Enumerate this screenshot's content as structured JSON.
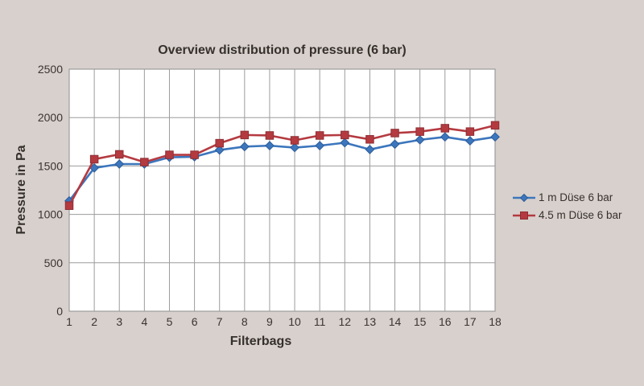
{
  "chart_data": {
    "type": "line",
    "title": "Overview distribution of pressure (6 bar)",
    "xlabel": "Filterbags",
    "ylabel": "Pressure in Pa",
    "x": [
      1,
      2,
      3,
      4,
      5,
      6,
      7,
      8,
      9,
      10,
      11,
      12,
      13,
      14,
      15,
      16,
      17,
      18
    ],
    "ylim": [
      0,
      2500
    ],
    "yticks": [
      0,
      500,
      1000,
      1500,
      2000,
      2500
    ],
    "grid": true,
    "legend_position": "right",
    "series": [
      {
        "name": "1 m Düse 6 bar",
        "color": "#3c76bd",
        "edge": "#2d5c97",
        "marker": "diamond",
        "values": [
          1140,
          1480,
          1520,
          1520,
          1590,
          1595,
          1665,
          1700,
          1710,
          1690,
          1710,
          1740,
          1670,
          1725,
          1770,
          1800,
          1760,
          1800
        ]
      },
      {
        "name": "4.5 m Düse 6 bar",
        "color": "#b43a40",
        "edge": "#8e2d33",
        "marker": "square",
        "values": [
          1090,
          1570,
          1620,
          1540,
          1615,
          1615,
          1735,
          1820,
          1815,
          1765,
          1815,
          1820,
          1775,
          1840,
          1855,
          1890,
          1855,
          1920
        ]
      }
    ],
    "colors": {
      "background": "#d8d0cc",
      "plot_background": "#ffffff",
      "grid": "#9c9c9c",
      "border": "#9c9c9c",
      "text": "#35302b",
      "tick_text": "#3a3430"
    }
  }
}
